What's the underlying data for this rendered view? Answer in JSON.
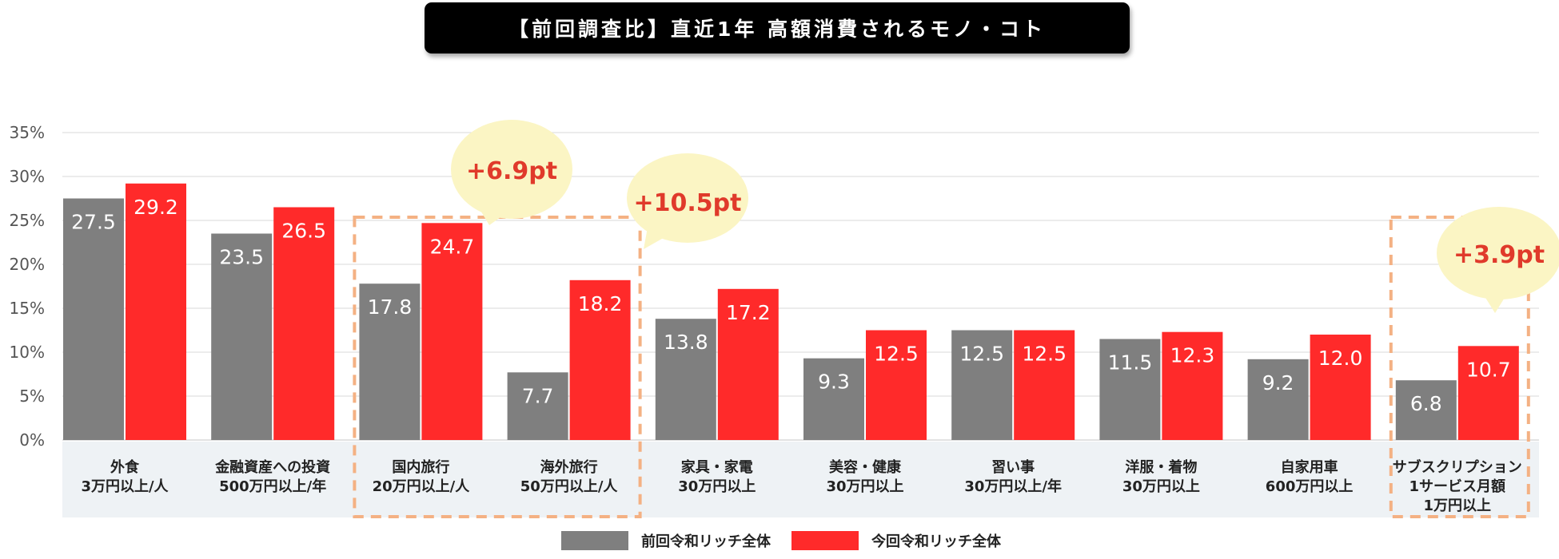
{
  "colors": {
    "previous": "#7f7f7f",
    "current": "#ff2a2a",
    "highlight": "#f4b183",
    "callout_bg": "#fbf5c4",
    "callout_text": "#e03a2b",
    "label_band": "#eef2f5",
    "grid": "#d9d9d9"
  },
  "chart_data": {
    "type": "bar",
    "title": "【前回調査比】直近1年 高額消費されるモノ・コト",
    "ylim": [
      0,
      35
    ],
    "yticks": [
      "0%",
      "5%",
      "10%",
      "15%",
      "20%",
      "25%",
      "30%",
      "35%"
    ],
    "ytick_values": [
      0,
      5,
      10,
      15,
      20,
      25,
      30,
      35
    ],
    "categories": [
      {
        "line1": "外食",
        "line2": "3万円以上/人",
        "line3": ""
      },
      {
        "line1": "金融資産への投資",
        "line2": "500万円以上/年",
        "line3": ""
      },
      {
        "line1": "国内旅行",
        "line2": "20万円以上/人",
        "line3": ""
      },
      {
        "line1": "海外旅行",
        "line2": "50万円以上/人",
        "line3": ""
      },
      {
        "line1": "家具・家電",
        "line2": "30万円以上",
        "line3": ""
      },
      {
        "line1": "美容・健康",
        "line2": "30万円以上",
        "line3": ""
      },
      {
        "line1": "習い事",
        "line2": "30万円以上/年",
        "line3": ""
      },
      {
        "line1": "洋服・着物",
        "line2": "30万円以上",
        "line3": ""
      },
      {
        "line1": "自家用車",
        "line2": "600万円以上",
        "line3": ""
      },
      {
        "line1": "サブスクリプション",
        "line2": "1サービス月額",
        "line3": "1万円以上"
      }
    ],
    "series": [
      {
        "name": "前回令和リッチ全体",
        "values": [
          27.5,
          23.5,
          17.8,
          7.7,
          13.8,
          9.3,
          12.5,
          11.5,
          9.2,
          6.8
        ],
        "labels": [
          "27.5",
          "23.5",
          "17.8",
          "7.7",
          "13.8",
          "9.3",
          "12.5",
          "11.5",
          "9.2",
          "6.8"
        ]
      },
      {
        "name": "今回令和リッチ全体",
        "values": [
          29.2,
          26.5,
          24.7,
          18.2,
          17.2,
          12.5,
          12.5,
          12.3,
          12.0,
          10.7
        ],
        "labels": [
          "29.2",
          "26.5",
          "24.7",
          "18.2",
          "17.2",
          "12.5",
          "12.5",
          "12.3",
          "12.0",
          "10.7"
        ]
      }
    ],
    "annotations": [
      {
        "text": "+6.9pt",
        "category_index": 2
      },
      {
        "text": "+10.5pt",
        "category_index": 3
      },
      {
        "text": "+3.9pt",
        "category_index": 9
      }
    ],
    "highlight_groups": [
      [
        2,
        3
      ],
      [
        9,
        9
      ]
    ],
    "legend_position": "bottom-center"
  }
}
